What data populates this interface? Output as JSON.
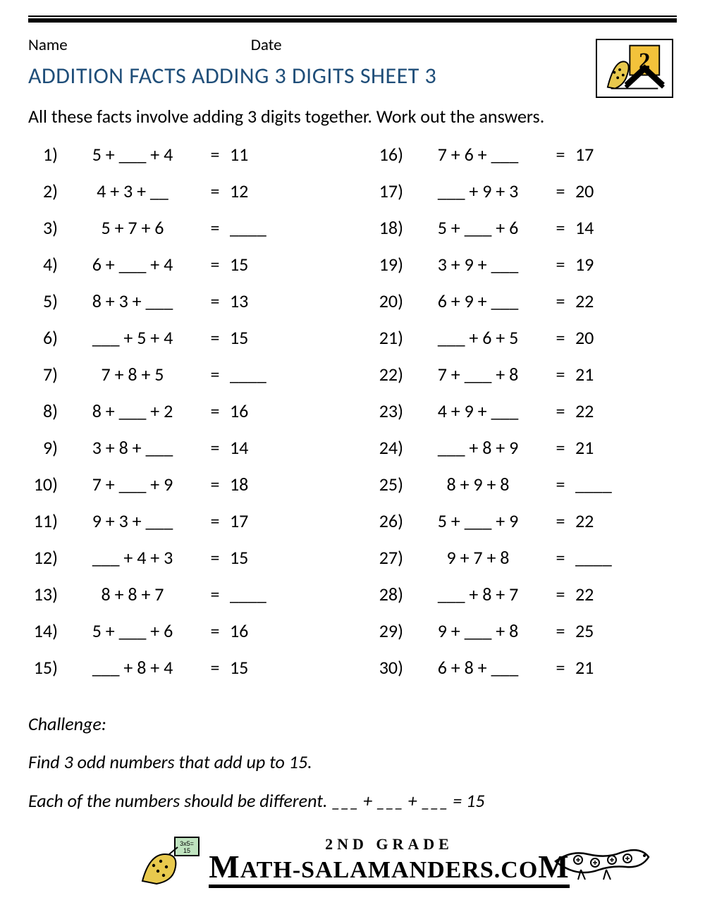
{
  "header": {
    "name_label": "Name",
    "date_label": "Date"
  },
  "title": "ADDITION FACTS ADDING 3 DIGITS SHEET 3",
  "instructions": "All these facts involve adding 3 digits together. Work out the answers.",
  "problems_left": [
    {
      "n": "1)",
      "expr": "5 + ___ + 4",
      "ans": "11"
    },
    {
      "n": "2)",
      "expr": "4 + 3 + __",
      "ans": "12"
    },
    {
      "n": "3)",
      "expr": "5 + 7 + 6",
      "ans": "____"
    },
    {
      "n": "4)",
      "expr": "6 + ___ + 4",
      "ans": "15"
    },
    {
      "n": "5)",
      "expr": "8 + 3 + ___",
      "ans": "13"
    },
    {
      "n": "6)",
      "expr": "___ + 5 + 4",
      "ans": "15"
    },
    {
      "n": "7)",
      "expr": "7 + 8 + 5",
      "ans": "____"
    },
    {
      "n": "8)",
      "expr": "8 + ___ + 2",
      "ans": "16"
    },
    {
      "n": "9)",
      "expr": "3 + 8 + ___",
      "ans": "14"
    },
    {
      "n": "10)",
      "expr": "7 + ___ + 9",
      "ans": "18"
    },
    {
      "n": "11)",
      "expr": "9 + 3 + ___",
      "ans": "17"
    },
    {
      "n": "12)",
      "expr": "___ + 4 + 3",
      "ans": "15"
    },
    {
      "n": "13)",
      "expr": "8 + 8 + 7",
      "ans": "____"
    },
    {
      "n": "14)",
      "expr": "5 + ___ + 6",
      "ans": "16"
    },
    {
      "n": "15)",
      "expr": "___ + 8 + 4",
      "ans": "15"
    }
  ],
  "problems_right": [
    {
      "n": "16)",
      "expr": "7 + 6 + ___",
      "ans": "17"
    },
    {
      "n": "17)",
      "expr": "___ + 9 + 3",
      "ans": "20"
    },
    {
      "n": "18)",
      "expr": "5 + ___ + 6",
      "ans": "14"
    },
    {
      "n": "19)",
      "expr": "3 + 9 + ___",
      "ans": "19"
    },
    {
      "n": "20)",
      "expr": "6 + 9 + ___",
      "ans": "22"
    },
    {
      "n": "21)",
      "expr": "___ + 6 + 5",
      "ans": "20"
    },
    {
      "n": "22)",
      "expr": "7 + ___ + 8",
      "ans": "21"
    },
    {
      "n": "23)",
      "expr": "4 + 9 + ___",
      "ans": "22"
    },
    {
      "n": "24)",
      "expr": "___ + 8 + 9",
      "ans": "21"
    },
    {
      "n": "25)",
      "expr": "8 + 9 + 8",
      "ans": "____"
    },
    {
      "n": "26)",
      "expr": "5 + ___ + 9",
      "ans": "22"
    },
    {
      "n": "27)",
      "expr": "9 + 7 + 8",
      "ans": "____"
    },
    {
      "n": "28)",
      "expr": "___ + 8 + 7",
      "ans": "22"
    },
    {
      "n": "29)",
      "expr": "9 + ___ + 8",
      "ans": "25"
    },
    {
      "n": "30)",
      "expr": "6 + 8 + ___",
      "ans": "21"
    }
  ],
  "challenge": {
    "heading": "Challenge:",
    "line1": "Find 3 odd numbers that add up to 15.",
    "line2": "Each of the numbers should be different.  ___ + ___ + ___ = 15"
  },
  "footer": {
    "line1": "2ND GRADE",
    "line2_pre": "ATH-SALAMANDERS.CO",
    "line2_bigM1": "M",
    "line2_bigM2": "M"
  },
  "colors": {
    "title": "#1f4e79",
    "text": "#000000",
    "background": "#ffffff"
  },
  "typography": {
    "title_fontsize_pt": 24,
    "body_fontsize_pt": 20,
    "footer_font": "Comic Sans MS"
  }
}
